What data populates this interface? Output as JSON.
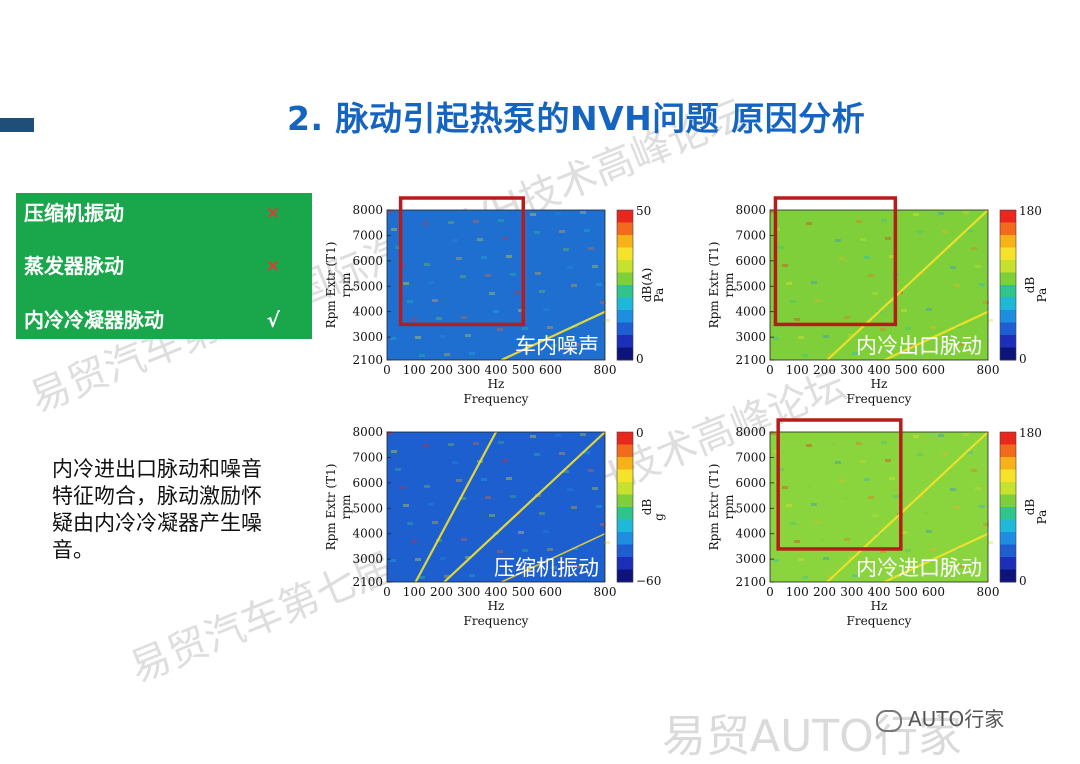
{
  "title": "2. 脉动引起热泵的NVH问题  原因分析",
  "causes": [
    {
      "label": "压缩机振动",
      "mark": "×"
    },
    {
      "label": "蒸发器脉动",
      "mark": "×"
    },
    {
      "label": "内冷冷凝器脉动",
      "mark": "√"
    }
  ],
  "conclusion": "内冷进出口脉动和噪音特征吻合，脉动激励怀疑由内冷冷凝器产生噪音。",
  "watermarks": [
    "易贸汽车第七届国际汽车NVH技术高峰论坛",
    "易贸汽车第七届国际汽车NVH技术高峰论坛",
    "易贸AUTO行家"
  ],
  "wechat_brand": "AUTO行家",
  "chart_data": [
    {
      "type": "heatmap",
      "overlay_label": "车内噪声",
      "xlabel": "Hz",
      "xlabel2": "Frequency",
      "ylabel": "Rpm Extr (T1)",
      "ylabel2": "rpm",
      "xticks": [
        "0",
        "100",
        "200",
        "300",
        "400",
        "500",
        "600",
        "800"
      ],
      "yticks": [
        "8000",
        "7000",
        "6000",
        "5000",
        "4000",
        "3000",
        "2100"
      ],
      "xlim": [
        0,
        800
      ],
      "ylim": [
        2100,
        8000
      ],
      "colorbar": {
        "top": "50",
        "bottom": "0",
        "label": "dB(A)",
        "label2": "Pa"
      },
      "highlight": {
        "x": [
          50,
          500
        ],
        "y": [
          3500,
          8000
        ]
      },
      "background": "#1e6fd0",
      "orders": [
        12,
        24,
        36,
        48,
        60,
        72,
        84
      ]
    },
    {
      "type": "heatmap",
      "overlay_label": "内冷出口脉动",
      "xlabel": "Hz",
      "xlabel2": "Frequency",
      "ylabel": "Rpm Extr (T1)",
      "ylabel2": "rpm",
      "xticks": [
        "0",
        "100",
        "200",
        "300",
        "400",
        "500",
        "600",
        "800"
      ],
      "yticks": [
        "8000",
        "7000",
        "6000",
        "5000",
        "4000",
        "3000",
        "2100"
      ],
      "xlim": [
        0,
        800
      ],
      "ylim": [
        2100,
        8000
      ],
      "colorbar": {
        "top": "180",
        "bottom": "0",
        "label": "dB",
        "label2": "Pa"
      },
      "highlight": {
        "x": [
          20,
          460
        ],
        "y": [
          3500,
          8000
        ]
      },
      "background": "#7fcf3a",
      "orders": [
        6,
        12,
        24,
        36,
        48,
        60,
        72
      ]
    },
    {
      "type": "heatmap",
      "overlay_label": "压缩机振动",
      "xlabel": "Hz",
      "xlabel2": "Frequency",
      "ylabel": "Rpm Extr (T1)",
      "ylabel2": "rpm",
      "xticks": [
        "0",
        "100",
        "200",
        "300",
        "400",
        "500",
        "600",
        "800"
      ],
      "yticks": [
        "8000",
        "7000",
        "6000",
        "5000",
        "4000",
        "3000",
        "2100"
      ],
      "xlim": [
        0,
        800
      ],
      "ylim": [
        2100,
        8000
      ],
      "colorbar": {
        "top": "0",
        "bottom": "−60",
        "label": "dB",
        "label2": "g"
      },
      "background": "#1d5fcf",
      "orders": [
        3,
        6,
        12,
        24,
        36,
        48,
        60,
        72,
        84
      ]
    },
    {
      "type": "heatmap",
      "overlay_label": "内冷进口脉动",
      "xlabel": "Hz",
      "xlabel2": "Frequency",
      "ylabel": "Rpm Extr (T1)",
      "ylabel2": "rpm",
      "xticks": [
        "0",
        "100",
        "200",
        "300",
        "400",
        "500",
        "600",
        "800"
      ],
      "yticks": [
        "8000",
        "7000",
        "6000",
        "5000",
        "4000",
        "3000",
        "2100"
      ],
      "xlim": [
        0,
        800
      ],
      "ylim": [
        2100,
        8000
      ],
      "colorbar": {
        "top": "180",
        "bottom": "0",
        "label": "dB",
        "label2": "Pa"
      },
      "highlight": {
        "x": [
          30,
          480
        ],
        "y": [
          3400,
          8000
        ]
      },
      "background": "#8ad43e",
      "orders": [
        6,
        12,
        24,
        36,
        48,
        60,
        72
      ]
    }
  ]
}
